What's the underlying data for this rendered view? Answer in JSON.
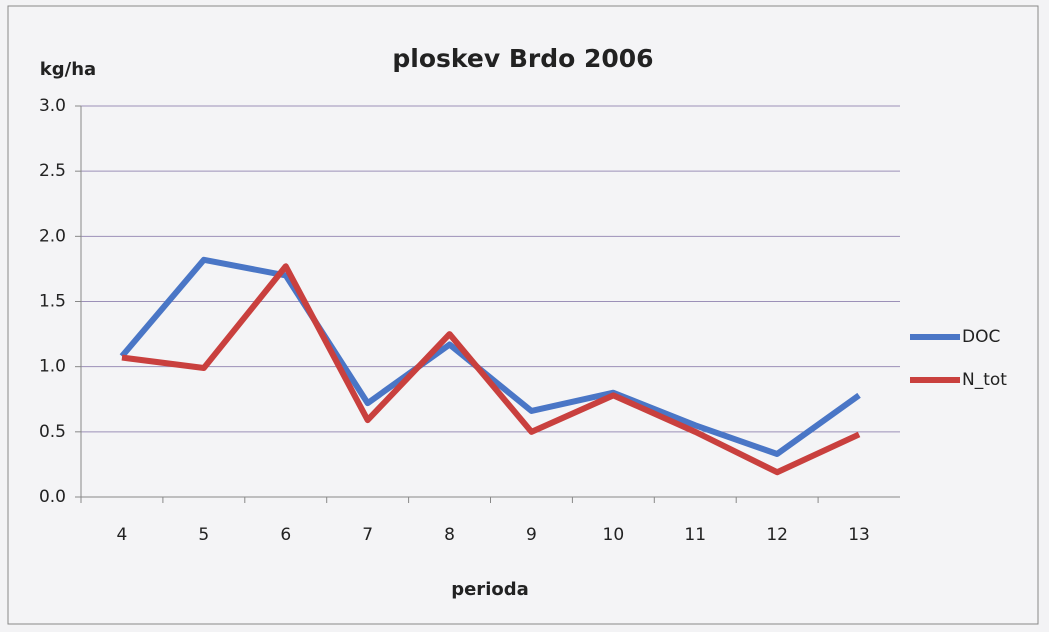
{
  "chart_data": {
    "type": "line",
    "title": "ploskev Brdo 2006",
    "y_axis_label": "kg/ha",
    "x_axis_label": "perioda",
    "categories": [
      "4",
      "5",
      "6",
      "7",
      "8",
      "9",
      "10",
      "11",
      "12",
      "13"
    ],
    "series": [
      {
        "name": "DOC",
        "color": "#4a76c6",
        "values": [
          1.08,
          1.82,
          1.7,
          0.72,
          1.17,
          0.66,
          0.8,
          0.55,
          0.33,
          0.78
        ]
      },
      {
        "name": "N_tot",
        "color": "#c9403e",
        "values": [
          1.07,
          0.99,
          1.77,
          0.59,
          1.25,
          0.5,
          0.78,
          0.5,
          0.19,
          0.48
        ]
      }
    ],
    "ylim": [
      0,
      3
    ],
    "yticks": [
      {
        "value": 0,
        "label": "0.0"
      },
      {
        "value": 0.5,
        "label": "0.5"
      },
      {
        "value": 1,
        "label": "1.0"
      },
      {
        "value": 1.5,
        "label": "1.5"
      },
      {
        "value": 2,
        "label": "2.0"
      },
      {
        "value": 2.5,
        "label": "2.5"
      },
      {
        "value": 3,
        "label": "3.0"
      }
    ],
    "grid": true,
    "legend": "right"
  }
}
